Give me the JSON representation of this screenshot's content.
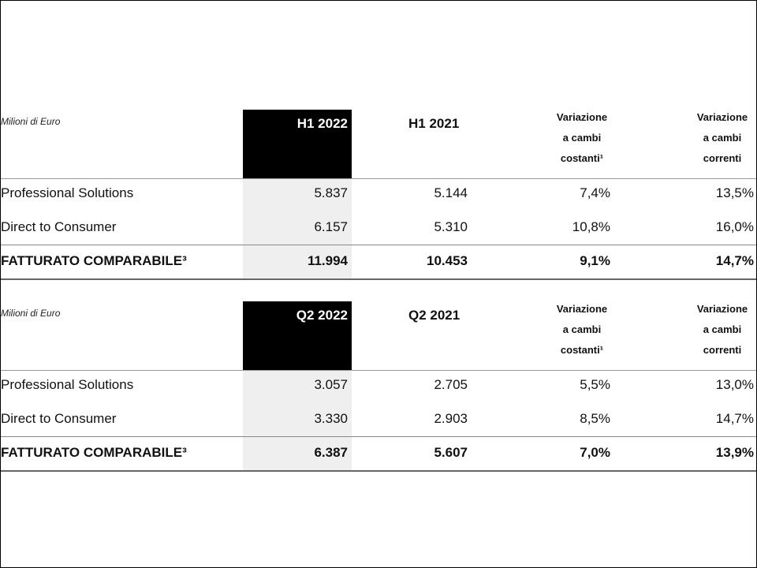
{
  "tables": [
    {
      "unit": "Milioni di Euro",
      "columns": [
        "H1 2022",
        "H1 2021",
        [
          "Variazione",
          "a cambi",
          "costanti¹"
        ],
        [
          "Variazione",
          "a cambi",
          "correnti"
        ]
      ],
      "rows": [
        [
          "Professional Solutions",
          "5.837",
          "5.144",
          "7,4%",
          "13,5%"
        ],
        [
          "Direct to Consumer",
          "6.157",
          "5.310",
          "10,8%",
          "16,0%"
        ],
        [
          "FATTURATO COMPARABILE³",
          "11.994",
          "10.453",
          "9,1%",
          "14,7%"
        ]
      ]
    },
    {
      "unit": "Milioni di Euro",
      "columns": [
        "Q2 2022",
        "Q2 2021",
        [
          "Variazione",
          "a cambi",
          "costanti¹"
        ],
        [
          "Variazione",
          "a cambi",
          "correnti"
        ]
      ],
      "rows": [
        [
          "Professional Solutions",
          "3.057",
          "2.705",
          "5,5%",
          "13,0%"
        ],
        [
          "Direct to Consumer",
          "3.330",
          "2.903",
          "8,5%",
          "14,7%"
        ],
        [
          "FATTURATO COMPARABILE³",
          "6.387",
          "5.607",
          "7,0%",
          "13,9%"
        ]
      ]
    }
  ]
}
